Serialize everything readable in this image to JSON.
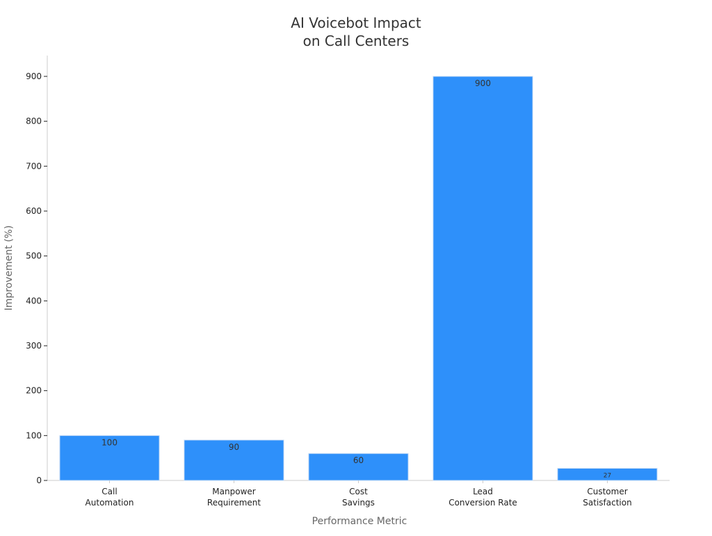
{
  "chart_data": {
    "type": "bar",
    "title": [
      "AI Voicebot Impact",
      "on Call Centers"
    ],
    "xlabel": "Performance Metric",
    "ylabel": "Improvement (%)",
    "categories": [
      [
        "Call",
        "Automation"
      ],
      [
        "Manpower",
        "Requirement"
      ],
      [
        "Cost",
        "Savings"
      ],
      [
        "Lead",
        "Conversion Rate"
      ],
      [
        "Customer",
        "Satisfaction"
      ]
    ],
    "values": [
      100,
      90,
      60,
      900,
      27
    ],
    "ylim": [
      0,
      950
    ],
    "yticks": [
      0,
      100,
      200,
      300,
      400,
      500,
      600,
      700,
      800,
      900
    ],
    "grid": false,
    "legend": "none",
    "colors": {
      "bar": "#2e90fa",
      "bar_edge": "#c7dcf5",
      "title": "#333333",
      "axis_label": "#666666",
      "tick_label": "#222222",
      "axis_line": "#cccccc",
      "value_label": "#333333"
    }
  }
}
